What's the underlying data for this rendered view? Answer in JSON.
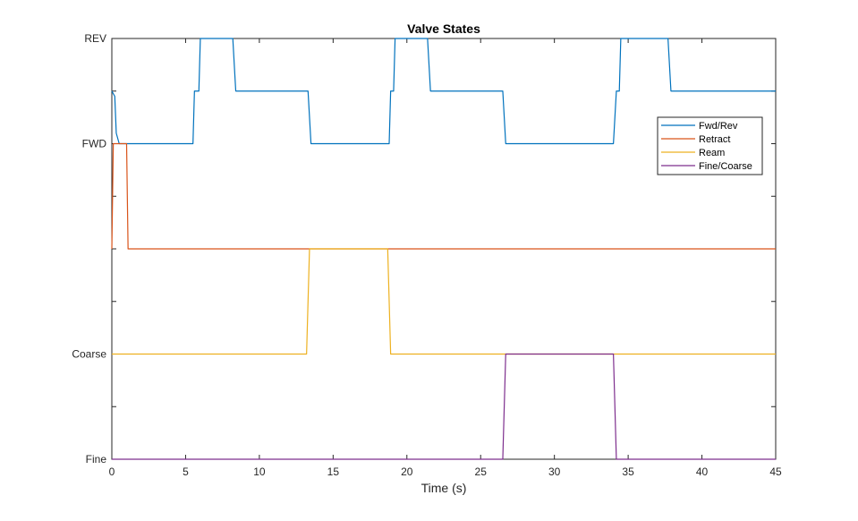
{
  "chart_data": {
    "type": "line",
    "title": "Valve States",
    "xlabel": "Time (s)",
    "ylabel": "",
    "xlim": [
      0,
      45
    ],
    "ylim": [
      0,
      4
    ],
    "x_ticks": [
      0,
      5,
      10,
      15,
      20,
      25,
      30,
      35,
      40,
      45
    ],
    "x_tick_labels": [
      "0",
      "5",
      "10",
      "15",
      "20",
      "25",
      "30",
      "35",
      "40",
      "45"
    ],
    "y_ticks": [
      0,
      0.5,
      1,
      1.5,
      2,
      2.5,
      3,
      3.5,
      4
    ],
    "y_tick_labels": [
      "Fine",
      "",
      "Coarse",
      "",
      "",
      "",
      "FWD",
      "",
      "REV"
    ],
    "grid": false,
    "legend_position": "right",
    "colors": {
      "Fwd/Rev": "#0072BD",
      "Retract": "#D95319",
      "Ream": "#EDB120",
      "Fine/Coarse": "#7E2F8E"
    },
    "series": [
      {
        "name": "Fwd/Rev",
        "x": [
          0,
          0.2,
          0.3,
          0.5,
          5.5,
          5.6,
          5.9,
          6.0,
          8.2,
          8.4,
          13.3,
          13.5,
          18.8,
          18.9,
          19.1,
          19.2,
          21.4,
          21.6,
          26.5,
          26.7,
          34.0,
          34.2,
          34.4,
          34.5,
          37.7,
          37.9,
          45
        ],
        "y": [
          3.5,
          3.45,
          3.1,
          3.0,
          3.0,
          3.5,
          3.5,
          4.0,
          4.0,
          3.5,
          3.5,
          3.0,
          3.0,
          3.5,
          3.5,
          4.0,
          4.0,
          3.5,
          3.5,
          3.0,
          3.0,
          3.5,
          3.5,
          4.0,
          4.0,
          3.5,
          3.5
        ]
      },
      {
        "name": "Retract",
        "x": [
          0,
          0.1,
          0.2,
          1.0,
          1.1,
          45
        ],
        "y": [
          2.0,
          3.0,
          3.0,
          3.0,
          2.0,
          2.0
        ]
      },
      {
        "name": "Ream",
        "x": [
          0,
          13.2,
          13.4,
          18.7,
          18.9,
          45
        ],
        "y": [
          1.0,
          1.0,
          2.0,
          2.0,
          1.0,
          1.0
        ]
      },
      {
        "name": "Fine/Coarse",
        "x": [
          0,
          26.5,
          26.7,
          34.0,
          34.2,
          45
        ],
        "y": [
          0.0,
          0.0,
          1.0,
          1.0,
          0.0,
          0.0
        ]
      }
    ]
  }
}
